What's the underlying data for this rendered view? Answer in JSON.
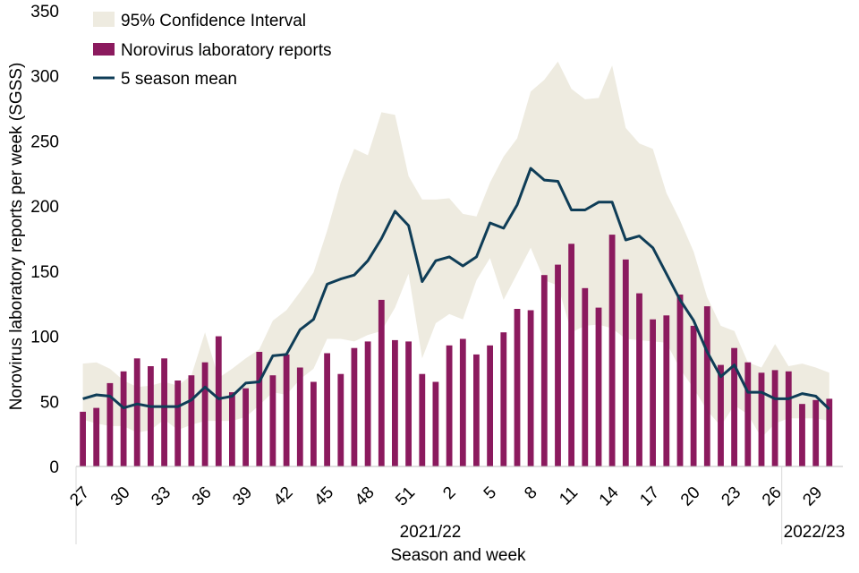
{
  "chart_data": {
    "type": "bar",
    "title": "",
    "xlabel": "Season and week",
    "ylabel": "Norovirus laboratory reports per week (SGSS)",
    "ylim": [
      0,
      350
    ],
    "yticks": [
      0,
      50,
      100,
      150,
      200,
      250,
      300,
      350
    ],
    "weeks": [
      27,
      28,
      29,
      30,
      31,
      32,
      33,
      34,
      35,
      36,
      37,
      38,
      39,
      40,
      41,
      42,
      43,
      44,
      45,
      46,
      47,
      48,
      49,
      50,
      51,
      52,
      1,
      2,
      3,
      4,
      5,
      6,
      7,
      8,
      9,
      10,
      11,
      12,
      13,
      14,
      15,
      16,
      17,
      18,
      19,
      20,
      21,
      22,
      23,
      24,
      25,
      26,
      27,
      28,
      29,
      30
    ],
    "tick_labels": [
      "27",
      "30",
      "33",
      "36",
      "39",
      "42",
      "45",
      "48",
      "51",
      "2",
      "5",
      "8",
      "11",
      "14",
      "17",
      "20",
      "23",
      "26",
      "29"
    ],
    "seasons": [
      {
        "label": "2021/22",
        "start_week_index": 0,
        "end_week_index": 51
      },
      {
        "label": "2022/23",
        "start_week_index": 52,
        "end_week_index": 55
      }
    ],
    "series": [
      {
        "name": "Norovirus laboratory reports",
        "type": "bar",
        "color": "#8B1A5E",
        "values": [
          42,
          45,
          64,
          73,
          83,
          77,
          83,
          66,
          70,
          80,
          100,
          57,
          60,
          88,
          70,
          86,
          76,
          65,
          87,
          71,
          91,
          96,
          128,
          97,
          96,
          71,
          65,
          93,
          98,
          86,
          93,
          103,
          121,
          120,
          147,
          155,
          171,
          137,
          122,
          178,
          159,
          133,
          113,
          116,
          132,
          108,
          123,
          78,
          91,
          80,
          72,
          74,
          73,
          48,
          51,
          52
        ]
      },
      {
        "name": "5 season mean",
        "type": "line",
        "color": "#0F3D57",
        "values": [
          52,
          55,
          54,
          45,
          48,
          46,
          46,
          46,
          51,
          61,
          52,
          54,
          64,
          65,
          85,
          86,
          105,
          113,
          140,
          144,
          147,
          158,
          175,
          196,
          185,
          142,
          158,
          161,
          154,
          161,
          187,
          183,
          201,
          229,
          220,
          219,
          197,
          197,
          203,
          203,
          174,
          177,
          168,
          148,
          128,
          112,
          88,
          69,
          78,
          57,
          57,
          52,
          52,
          56,
          54,
          44
        ]
      },
      {
        "name": "95% Confidence Interval",
        "type": "band",
        "color": "#EEEBE0",
        "upper": [
          79,
          80,
          75,
          66,
          61,
          62,
          65,
          62,
          70,
          103,
          68,
          75,
          83,
          90,
          112,
          120,
          134,
          149,
          181,
          218,
          244,
          239,
          272,
          270,
          223,
          205,
          205,
          206,
          194,
          192,
          218,
          238,
          252,
          288,
          297,
          311,
          290,
          282,
          283,
          308,
          260,
          248,
          244,
          210,
          189,
          165,
          130,
          108,
          104,
          80,
          76,
          94,
          77,
          79,
          76,
          72
        ],
        "lower": [
          36,
          33,
          31,
          31,
          26,
          28,
          36,
          28,
          32,
          35,
          35,
          35,
          38,
          47,
          57,
          55,
          67,
          75,
          98,
          98,
          96,
          101,
          104,
          122,
          148,
          83,
          110,
          117,
          113,
          143,
          160,
          128,
          148,
          168,
          143,
          139,
          103,
          108,
          109,
          106,
          98,
          97,
          96,
          95,
          75,
          60,
          43,
          31,
          47,
          40,
          22,
          33,
          37,
          37,
          37,
          35
        ]
      }
    ],
    "legend": {
      "position": "top-left",
      "entries": [
        {
          "label": "95% Confidence Interval",
          "color": "#EEEBE0",
          "kind": "area"
        },
        {
          "label": "Norovirus laboratory reports",
          "color": "#8B1A5E",
          "kind": "bar"
        },
        {
          "label": "5 season mean",
          "color": "#0F3D57",
          "kind": "line"
        }
      ]
    }
  }
}
